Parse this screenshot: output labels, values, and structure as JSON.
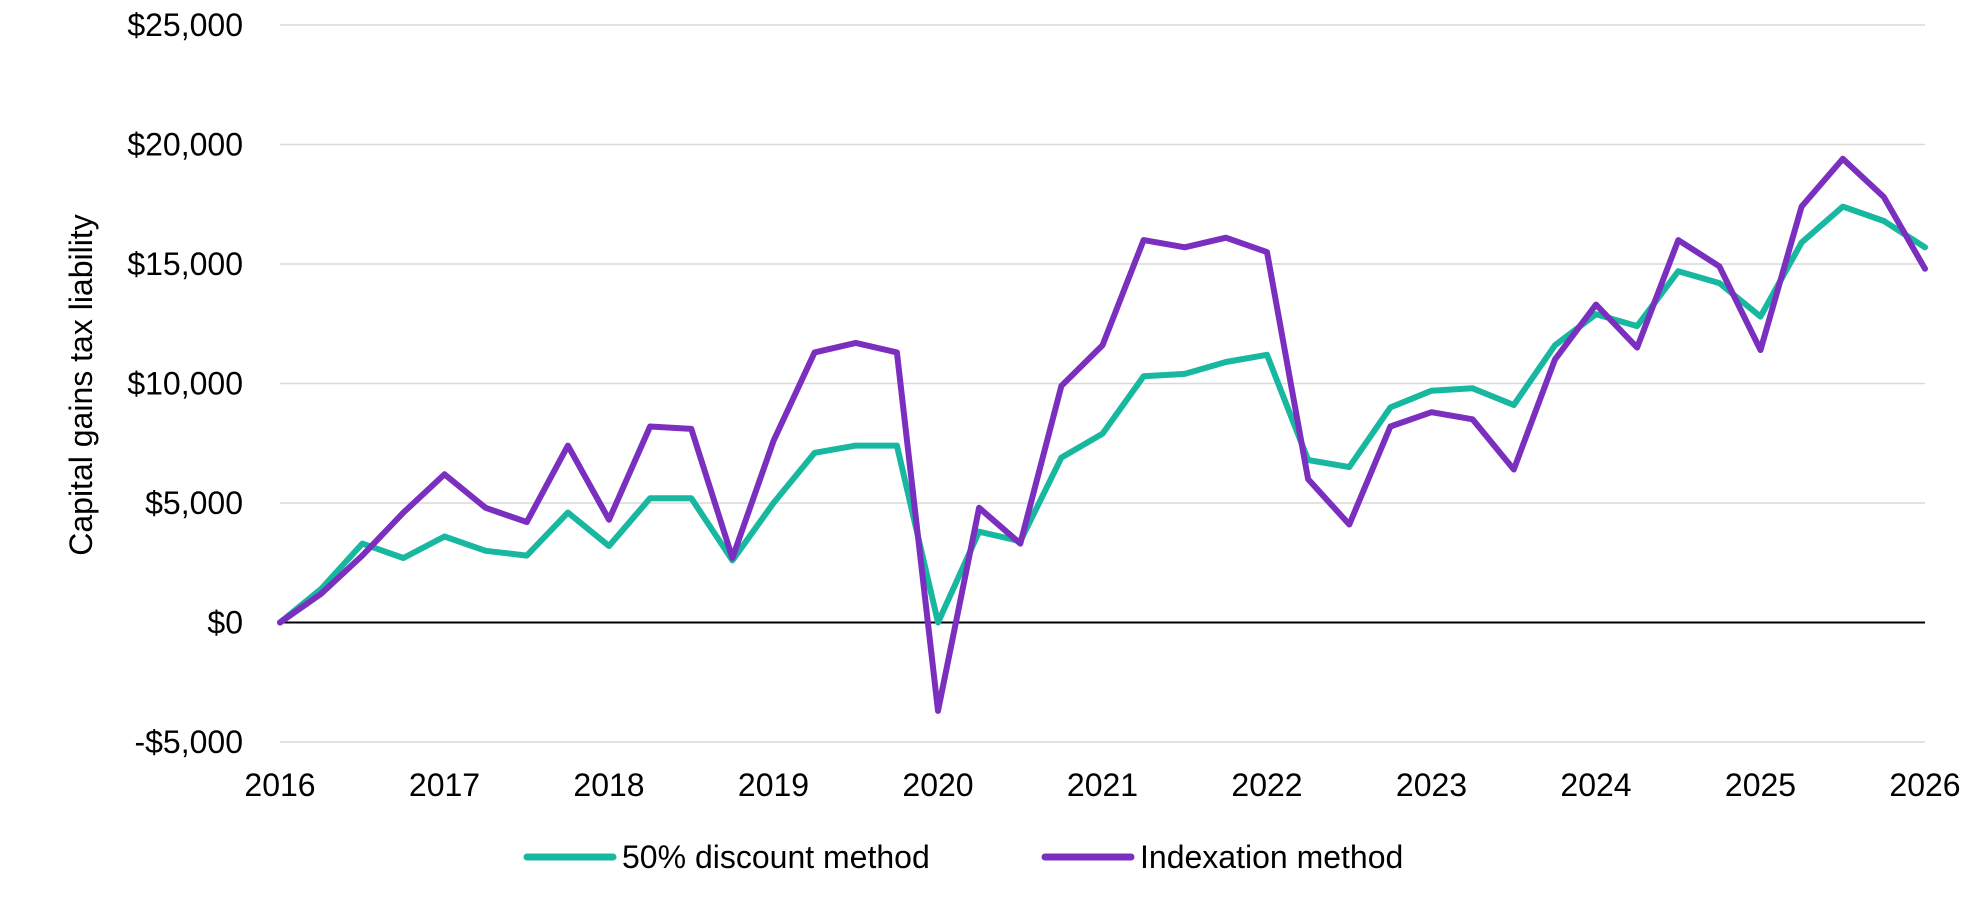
{
  "chart_data": {
    "type": "line",
    "title": "",
    "xlabel": "",
    "ylabel": "Capital gains tax liability",
    "ylim": [
      -5000,
      25000
    ],
    "xlim": [
      2016,
      2026
    ],
    "y_ticks": [
      {
        "value": -5000,
        "label": "-$5,000"
      },
      {
        "value": 0,
        "label": "$0"
      },
      {
        "value": 5000,
        "label": "$5,000"
      },
      {
        "value": 10000,
        "label": "$10,000"
      },
      {
        "value": 15000,
        "label": "$15,000"
      },
      {
        "value": 20000,
        "label": "$20,000"
      },
      {
        "value": 25000,
        "label": "$25,000"
      }
    ],
    "x_ticks": [
      {
        "value": 2016,
        "label": "2016"
      },
      {
        "value": 2017,
        "label": "2017"
      },
      {
        "value": 2018,
        "label": "2018"
      },
      {
        "value": 2019,
        "label": "2019"
      },
      {
        "value": 2020,
        "label": "2020"
      },
      {
        "value": 2021,
        "label": "2021"
      },
      {
        "value": 2022,
        "label": "2022"
      },
      {
        "value": 2023,
        "label": "2023"
      },
      {
        "value": 2024,
        "label": "2024"
      },
      {
        "value": 2025,
        "label": "2025"
      },
      {
        "value": 2026,
        "label": "2026"
      }
    ],
    "grid": true,
    "legend_position": "bottom",
    "x": [
      2016,
      2016.25,
      2016.5,
      2016.75,
      2017,
      2017.25,
      2017.5,
      2017.75,
      2018,
      2018.25,
      2018.5,
      2018.75,
      2019,
      2019.25,
      2019.5,
      2019.75,
      2020,
      2020.25,
      2020.5,
      2020.75,
      2021,
      2021.25,
      2021.5,
      2021.75,
      2022,
      2022.25,
      2022.5,
      2022.75,
      2023,
      2023.25,
      2023.5,
      2023.75,
      2024,
      2024.25,
      2024.5,
      2024.75,
      2025,
      2025.25,
      2025.5,
      2025.75,
      2026
    ],
    "series": [
      {
        "name": "50% discount method",
        "color": "#17b7a0",
        "values": [
          0,
          1400,
          3300,
          2700,
          3600,
          3000,
          2800,
          4600,
          3200,
          5200,
          5200,
          2600,
          5000,
          7100,
          7400,
          7400,
          0,
          3800,
          3400,
          6900,
          7900,
          10300,
          10400,
          10900,
          11200,
          6800,
          6500,
          9000,
          9700,
          9800,
          9100,
          11600,
          12900,
          12400,
          14700,
          14200,
          12800,
          15900,
          17400,
          16800,
          15700
        ]
      },
      {
        "name": "Indexation method",
        "color": "#7b2fbe",
        "values": [
          0,
          1200,
          2800,
          4600,
          6200,
          4800,
          4200,
          7400,
          4300,
          8200,
          8100,
          2700,
          7600,
          11300,
          11700,
          11300,
          -3700,
          4800,
          3300,
          9900,
          11600,
          16000,
          15700,
          16100,
          15500,
          6000,
          4100,
          8200,
          8800,
          8500,
          6400,
          11000,
          13300,
          11500,
          16000,
          14900,
          11400,
          17400,
          19400,
          17800,
          14800
        ]
      }
    ]
  }
}
